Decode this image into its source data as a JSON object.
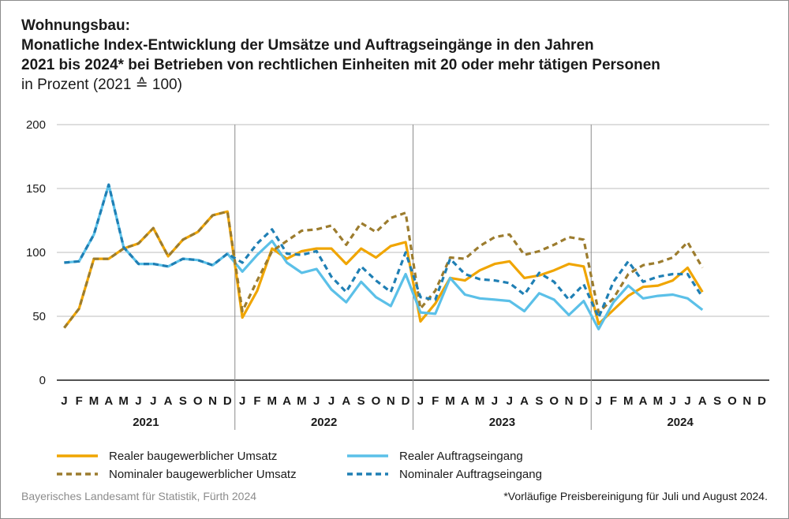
{
  "header": {
    "title_lines": [
      "Wohnungsbau:",
      "Monatliche Index-Entwicklung der Umsätze und Auftragseingänge in den Jahren",
      "2021 bis 2024* bei Betrieben von rechtlichen Einheiten mit 20 oder mehr tätigen Personen"
    ],
    "subtitle": "in Prozent (2021 ≙ 100)"
  },
  "footer": {
    "source": "Bayerisches Landesamt für Statistik, Fürth 2024",
    "note": "*Vorläufige Preisbereinigung für Juli und August 2024."
  },
  "colors": {
    "orange": "#f0a500",
    "blue": "#5bc0e8",
    "brown": "#9c7c2e",
    "dark_blue": "#1f7fb4",
    "grid": "#bdbdbd"
  },
  "chart_data": {
    "type": "line",
    "ylim": [
      0,
      200
    ],
    "yticks": [
      0,
      50,
      100,
      150,
      200
    ],
    "grid": true,
    "legend_position": "bottom",
    "month_labels": [
      "J",
      "F",
      "M",
      "A",
      "M",
      "J",
      "J",
      "A",
      "S",
      "O",
      "N",
      "D"
    ],
    "years": [
      "2021",
      "2022",
      "2023",
      "2024"
    ],
    "series": [
      {
        "name": "Realer baugewerblicher Umsatz",
        "color": "#f0a500",
        "dash": "solid",
        "values": [
          41,
          56,
          95,
          95,
          103,
          107,
          119,
          97,
          110,
          116,
          129,
          132,
          49,
          70,
          103,
          95,
          101,
          103,
          103,
          91,
          103,
          96,
          105,
          108,
          46,
          60,
          80,
          78,
          86,
          91,
          93,
          80,
          82,
          86,
          91,
          89,
          44,
          55,
          66,
          73,
          74,
          78,
          88,
          69,
          null,
          null,
          null,
          null
        ]
      },
      {
        "name": "Realer Auftragseingang",
        "color": "#5bc0e8",
        "dash": "solid",
        "values": [
          92,
          93,
          114,
          153,
          104,
          91,
          91,
          89,
          95,
          94,
          90,
          99,
          85,
          98,
          109,
          92,
          84,
          87,
          71,
          61,
          77,
          65,
          58,
          83,
          53,
          52,
          80,
          67,
          64,
          63,
          62,
          54,
          68,
          63,
          51,
          62,
          40,
          61,
          74,
          64,
          66,
          67,
          64,
          55,
          null,
          null,
          null,
          null
        ]
      },
      {
        "name": "Nominaler baugewerblicher Umsatz",
        "color": "#9c7c2e",
        "dash": "dashed",
        "values": [
          41,
          56,
          95,
          95,
          103,
          107,
          119,
          97,
          110,
          116,
          129,
          132,
          54,
          78,
          101,
          109,
          117,
          118,
          121,
          106,
          123,
          116,
          127,
          131,
          56,
          70,
          96,
          95,
          105,
          112,
          114,
          98,
          101,
          106,
          112,
          110,
          53,
          64,
          83,
          90,
          92,
          96,
          108,
          88,
          null,
          null,
          null,
          null
        ]
      },
      {
        "name": "Nominaler Auftragseingang",
        "color": "#1f7fb4",
        "dash": "dashed",
        "values": [
          92,
          93,
          114,
          153,
          104,
          91,
          91,
          89,
          95,
          94,
          90,
          99,
          92,
          107,
          118,
          99,
          98,
          101,
          81,
          69,
          89,
          78,
          69,
          100,
          65,
          63,
          95,
          83,
          79,
          78,
          76,
          67,
          84,
          77,
          63,
          75,
          49,
          77,
          93,
          77,
          81,
          83,
          83,
          65,
          null,
          null,
          null,
          null
        ]
      }
    ]
  }
}
